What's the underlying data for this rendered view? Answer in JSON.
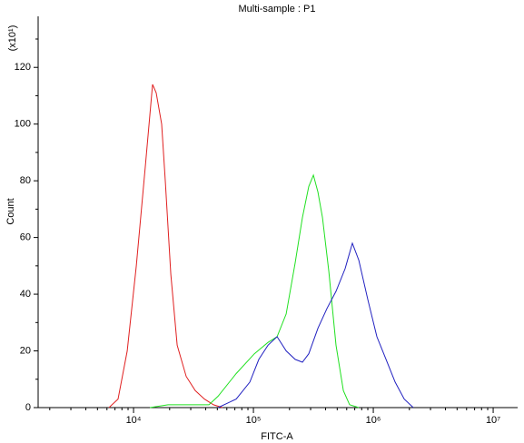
{
  "chart_data": {
    "type": "line",
    "title": "Multi-sample : P1",
    "xlabel": "FITC-A",
    "ylabel": "Count",
    "yunit": "(x10¹)",
    "xscale": "log",
    "xlim": [
      1600,
      16000000
    ],
    "ylim": [
      0,
      138
    ],
    "xticks": [
      {
        "value": 10000,
        "label": "10⁴"
      },
      {
        "value": 100000,
        "label": "10⁵"
      },
      {
        "value": 1000000,
        "label": "10⁶"
      },
      {
        "value": 10000000,
        "label": "10⁷"
      }
    ],
    "yticks": [
      0,
      20,
      40,
      60,
      80,
      100,
      120
    ],
    "series": [
      {
        "color": "#e02020",
        "x": [
          6240,
          7430,
          8850,
          10540,
          12540,
          14420,
          15460,
          17170,
          18410,
          20460,
          23110,
          27490,
          32730,
          38990,
          46430,
          55230
        ],
        "values": [
          0,
          3,
          20,
          50,
          85,
          114,
          111,
          100,
          80,
          47,
          22,
          11,
          6,
          3,
          1,
          0
        ]
      },
      {
        "color": "#20e020",
        "x": [
          13690,
          19420,
          30000,
          42560,
          50700,
          71800,
          101800,
          132200,
          157400,
          187400,
          223000,
          256400,
          289700,
          316200,
          345300,
          376600,
          425600,
          489000,
          562300,
          635300,
          756800
        ],
        "values": [
          0,
          1,
          1,
          1,
          4,
          12,
          19,
          23,
          25,
          33,
          51,
          67,
          78,
          82,
          76,
          67,
          48,
          22,
          6,
          1,
          0
        ]
      },
      {
        "color": "#2020c0",
        "x": [
          50700,
          71800,
          93300,
          111000,
          132200,
          157400,
          187400,
          223000,
          256400,
          289700,
          345300,
          411000,
          489000,
          582000,
          669000,
          756800,
          901000,
          1072000,
          1277000,
          1520000,
          1811000,
          2155000
        ],
        "values": [
          0,
          3,
          9,
          17,
          22,
          25,
          20,
          17,
          16,
          19,
          28,
          35,
          41,
          49,
          58,
          52,
          38,
          25,
          17,
          9,
          3,
          0
        ]
      }
    ]
  }
}
